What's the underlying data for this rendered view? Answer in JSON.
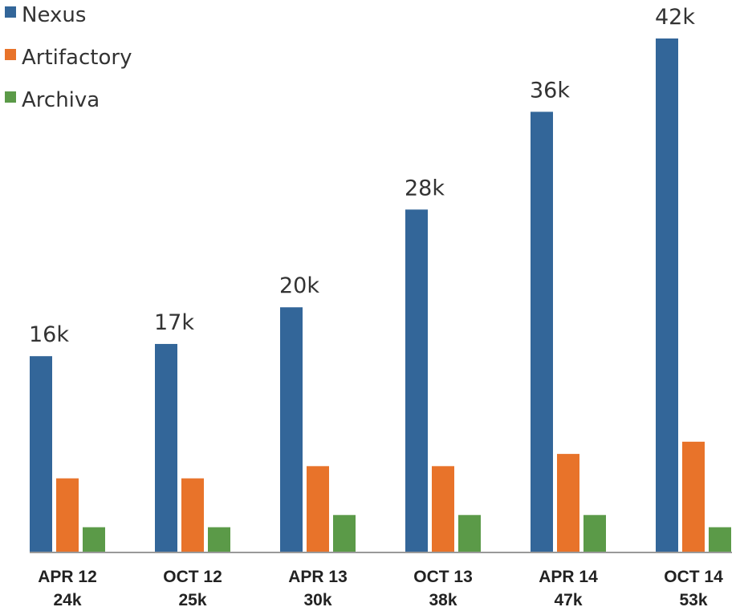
{
  "chart_data": {
    "type": "bar",
    "categories": [
      "APR 12",
      "OCT 12",
      "APR 13",
      "OCT 13",
      "APR 14",
      "OCT 14"
    ],
    "category_totals": [
      "24k",
      "25k",
      "30k",
      "38k",
      "47k",
      "53k"
    ],
    "series": [
      {
        "name": "Nexus",
        "color": "#336699",
        "values": [
          16,
          17,
          20,
          28,
          36,
          42
        ],
        "labels": [
          "16k",
          "17k",
          "20k",
          "28k",
          "36k",
          "42k"
        ]
      },
      {
        "name": "Artifactory",
        "color": "#e8732a",
        "values": [
          6,
          6,
          7,
          7,
          8,
          9
        ]
      },
      {
        "name": "Archiva",
        "color": "#5b9a48",
        "values": [
          2,
          2,
          3,
          3,
          3,
          2
        ]
      }
    ],
    "ylim": [
      0,
      45
    ],
    "grid": false,
    "legend_position": "top-left",
    "title": "",
    "xlabel": "",
    "ylabel": ""
  }
}
